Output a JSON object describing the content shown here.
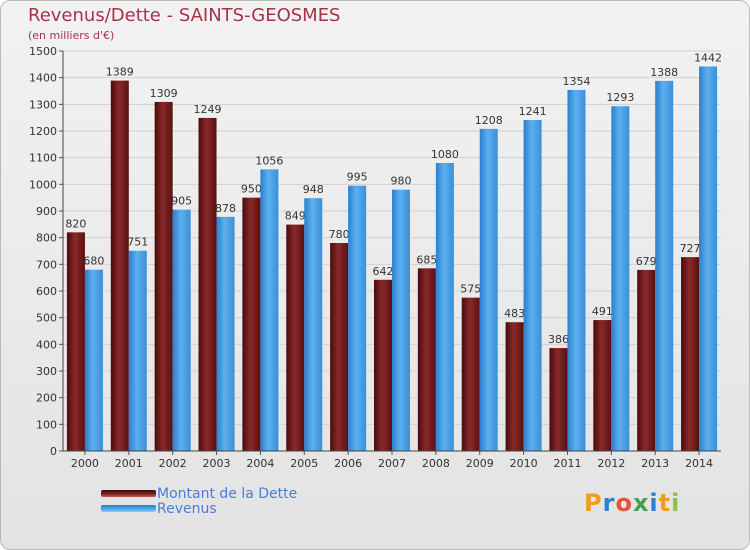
{
  "chart_data": {
    "type": "bar",
    "title": "Revenus/Dette - SAINTS-GEOSMES",
    "subtitle": "(en milliers d'€)",
    "categories": [
      "2000",
      "2001",
      "2002",
      "2003",
      "2004",
      "2005",
      "2006",
      "2007",
      "2008",
      "2009",
      "2010",
      "2011",
      "2012",
      "2013",
      "2014"
    ],
    "series": [
      {
        "name": "Montant de la Dette",
        "color": "#7a1c1c",
        "values": [
          820,
          1389,
          1309,
          1249,
          950,
          849,
          780,
          642,
          685,
          575,
          483,
          386,
          491,
          679,
          727
        ]
      },
      {
        "name": "Revenus",
        "color": "#4aa3e8",
        "values": [
          680,
          751,
          905,
          878,
          1056,
          948,
          995,
          980,
          1080,
          1208,
          1241,
          1354,
          1293,
          1388,
          1442
        ]
      }
    ],
    "ylim": [
      0,
      1500
    ],
    "yticks": [
      0,
      100,
      200,
      300,
      400,
      500,
      600,
      700,
      800,
      900,
      1000,
      1100,
      1200,
      1300,
      1400,
      1500
    ],
    "grid": true,
    "legend_position": "bottom-left"
  },
  "logo": {
    "text": "Proxiti",
    "letters": [
      "P",
      "r",
      "o",
      "x",
      "i",
      "t",
      "i"
    ],
    "colors": [
      "#f39b1a",
      "#2f7fd1",
      "#e8503a",
      "#3aa54a",
      "#2f7fd1",
      "#f39b1a",
      "#8bc34a"
    ]
  }
}
